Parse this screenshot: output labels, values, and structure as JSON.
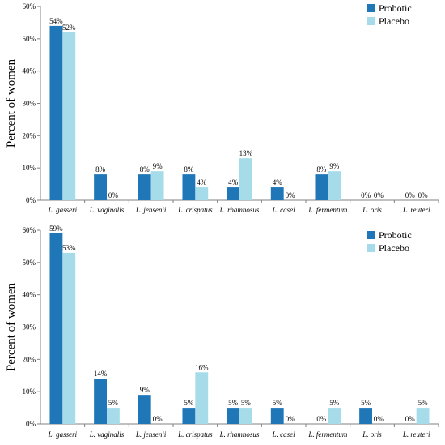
{
  "chart_data": [
    {
      "type": "bar",
      "title": "",
      "xlabel": "",
      "ylabel": "Percent of women",
      "ylim": [
        0,
        60
      ],
      "yticks": [
        "0%",
        "10%",
        "20%",
        "30%",
        "40%",
        "50%",
        "60%"
      ],
      "grid": false,
      "legend": "top-right",
      "categories": [
        "L. gasseri",
        "L. vaginalis",
        "L. jensenii",
        "L. crispatus",
        "L. rhamnosus",
        "L. casei",
        "L. fermentum",
        "L. oris",
        "L. reuteri"
      ],
      "series": [
        {
          "name": "Probotic",
          "color": "#1f77b8",
          "values": [
            54,
            8,
            8,
            8,
            4,
            4,
            8,
            0,
            0
          ],
          "labels": [
            "54%",
            "8%",
            "8%",
            "8%",
            "4%",
            "4%",
            "8%",
            "0%",
            "0%"
          ]
        },
        {
          "name": "Placebo",
          "color": "#a6dcea",
          "values": [
            52,
            0,
            9,
            4,
            13,
            0,
            9,
            0,
            0
          ],
          "labels": [
            "52%",
            "0%",
            "9%",
            "4%",
            "13%",
            "0%",
            "9%",
            "0%",
            "0%"
          ]
        }
      ]
    },
    {
      "type": "bar",
      "title": "",
      "xlabel": "",
      "ylabel": "Percent of women",
      "ylim": [
        0,
        60
      ],
      "yticks": [
        "0%",
        "10%",
        "20%",
        "30%",
        "40%",
        "50%",
        "60%"
      ],
      "grid": false,
      "legend": "top-right",
      "categories": [
        "L. gasseri",
        "L. vaginalis",
        "L. jensenii",
        "L. crispatus",
        "L. rhamnosus",
        "L. casei",
        "L. fermentum",
        "L. oris",
        "L. reuteri"
      ],
      "series": [
        {
          "name": "Probotic",
          "color": "#1f77b8",
          "values": [
            59,
            14,
            9,
            5,
            5,
            5,
            0,
            5,
            0
          ],
          "labels": [
            "59%",
            "14%",
            "9%",
            "5%",
            "5%",
            "5%",
            "0%",
            "5%",
            "0%"
          ]
        },
        {
          "name": "Placebo",
          "color": "#a6dcea",
          "values": [
            53,
            5,
            0,
            16,
            5,
            0,
            5,
            0,
            5
          ],
          "labels": [
            "53%",
            "5%",
            "0%",
            "16%",
            "5%",
            "0%",
            "5%",
            "0%",
            "5%"
          ]
        }
      ]
    }
  ]
}
